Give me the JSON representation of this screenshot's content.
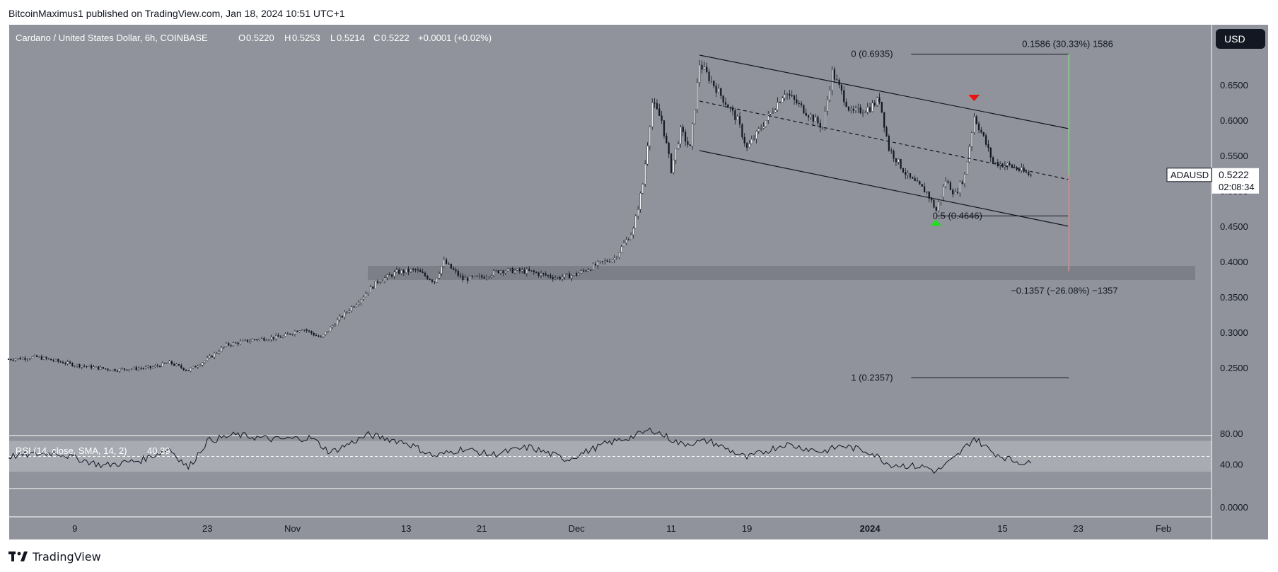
{
  "attribution": "BitcoinMaximus1 published on TradingView.com, Jan 18, 2024 10:51 UTC+1",
  "header": {
    "symbol": "Cardano / United States Dollar, 6h, COINBASE",
    "o_label": "O",
    "o_value": "0.5220",
    "h_label": "H",
    "h_value": "0.5253",
    "l_label": "L",
    "l_value": "0.5214",
    "c_label": "C",
    "c_value": "0.5222",
    "change": "+0.0001 (+0.02%)"
  },
  "currency_button": "USD",
  "brand": "TradingView",
  "colors": {
    "background": "#90939b",
    "candle": "#131722",
    "rsi_band": "#a9abb2",
    "support_zone": "#7c7f87",
    "green_marker": "#22dd22",
    "red_marker": "#ee1111",
    "green_line": "#7ec77e",
    "red_line": "#c98b8b"
  },
  "chart_data": {
    "type": "candlestick",
    "price_axis": {
      "min": 0.18,
      "max": 0.71,
      "ticks": [
        "0.6500",
        "0.6000",
        "0.5500",
        "0.5000",
        "0.4500",
        "0.4000",
        "0.3500",
        "0.3000",
        "0.2500"
      ]
    },
    "time_axis": {
      "start": "2023-10-02",
      "end": "2024-02-06",
      "ticks": [
        {
          "date": "2023-10-09",
          "label": "9"
        },
        {
          "date": "2023-10-23",
          "label": "23"
        },
        {
          "date": "2023-11-01",
          "label": "Nov"
        },
        {
          "date": "2023-11-13",
          "label": "13"
        },
        {
          "date": "2023-11-21",
          "label": "21"
        },
        {
          "date": "2023-12-01",
          "label": "Dec"
        },
        {
          "date": "2023-12-11",
          "label": "11"
        },
        {
          "date": "2023-12-19",
          "label": "19"
        },
        {
          "date": "2024-01-01",
          "label": "2024"
        },
        {
          "date": "2024-01-15",
          "label": "15"
        },
        {
          "date": "2024-01-23",
          "label": "23"
        },
        {
          "date": "2024-02-01",
          "label": "Feb"
        }
      ]
    },
    "price_path": [
      [
        "2023-10-02",
        0.262
      ],
      [
        "2023-10-05",
        0.265
      ],
      [
        "2023-10-09",
        0.254
      ],
      [
        "2023-10-13",
        0.247
      ],
      [
        "2023-10-17",
        0.25
      ],
      [
        "2023-10-19",
        0.257
      ],
      [
        "2023-10-21",
        0.246
      ],
      [
        "2023-10-23",
        0.262
      ],
      [
        "2023-10-25",
        0.282
      ],
      [
        "2023-10-28",
        0.29
      ],
      [
        "2023-10-31",
        0.294
      ],
      [
        "2023-11-02",
        0.306
      ],
      [
        "2023-11-04",
        0.292
      ],
      [
        "2023-11-06",
        0.32
      ],
      [
        "2023-11-08",
        0.345
      ],
      [
        "2023-11-10",
        0.372
      ],
      [
        "2023-11-12",
        0.385
      ],
      [
        "2023-11-14",
        0.388
      ],
      [
        "2023-11-16",
        0.372
      ],
      [
        "2023-11-17",
        0.4
      ],
      [
        "2023-11-19",
        0.375
      ],
      [
        "2023-11-21",
        0.378
      ],
      [
        "2023-11-23",
        0.388
      ],
      [
        "2023-11-26",
        0.386
      ],
      [
        "2023-11-29",
        0.377
      ],
      [
        "2023-12-01",
        0.382
      ],
      [
        "2023-12-03",
        0.395
      ],
      [
        "2023-12-05",
        0.405
      ],
      [
        "2023-12-07",
        0.445
      ],
      [
        "2023-12-08",
        0.51
      ],
      [
        "2023-12-09",
        0.625
      ],
      [
        "2023-12-10",
        0.6
      ],
      [
        "2023-12-11",
        0.53
      ],
      [
        "2023-12-12",
        0.585
      ],
      [
        "2023-12-13",
        0.56
      ],
      [
        "2023-12-14",
        0.68
      ],
      [
        "2023-12-16",
        0.64
      ],
      [
        "2023-12-18",
        0.6
      ],
      [
        "2023-12-19",
        0.56
      ],
      [
        "2023-12-21",
        0.6
      ],
      [
        "2023-12-23",
        0.64
      ],
      [
        "2023-12-25",
        0.615
      ],
      [
        "2023-12-27",
        0.59
      ],
      [
        "2023-12-28",
        0.668
      ],
      [
        "2023-12-30",
        0.61
      ],
      [
        "2024-01-01",
        0.618
      ],
      [
        "2024-01-02",
        0.63
      ],
      [
        "2024-01-03",
        0.56
      ],
      [
        "2024-01-05",
        0.52
      ],
      [
        "2024-01-07",
        0.498
      ],
      [
        "2024-01-08",
        0.472
      ],
      [
        "2024-01-09",
        0.515
      ],
      [
        "2024-01-10",
        0.495
      ],
      [
        "2024-01-11",
        0.522
      ],
      [
        "2024-01-12",
        0.606
      ],
      [
        "2024-01-13",
        0.575
      ],
      [
        "2024-01-14",
        0.54
      ],
      [
        "2024-01-16",
        0.535
      ],
      [
        "2024-01-17",
        0.528
      ],
      [
        "2024-01-18",
        0.522
      ]
    ],
    "channel": {
      "upper": [
        [
          "2023-12-14",
          0.692
        ],
        [
          "2024-01-22",
          0.588
        ]
      ],
      "middle": [
        [
          "2023-12-14",
          0.627
        ],
        [
          "2024-01-22",
          0.516
        ]
      ],
      "lower": [
        [
          "2023-12-14",
          0.557
        ],
        [
          "2024-01-22",
          0.45
        ]
      ]
    },
    "fib_levels": [
      {
        "label": "0 (0.6935)",
        "value": 0.6935
      },
      {
        "label": "0.5 (0.4646)",
        "value": 0.4646
      },
      {
        "label": "1 (0.2357)",
        "value": 0.2357
      }
    ],
    "support_zone": [
      0.374,
      0.394
    ],
    "measure_up": {
      "label": "0.1586 (30.33%) 1586",
      "from": 0.5222,
      "to": 0.6935,
      "date": "2024-01-22"
    },
    "measure_down": {
      "label": "−0.1357 (−26.08%) −1357",
      "from": 0.5222,
      "to": 0.3865,
      "date": "2024-01-22"
    },
    "markers": [
      {
        "type": "bullish",
        "date": "2024-01-08",
        "price": 0.4646
      },
      {
        "type": "bearish",
        "date": "2024-01-12",
        "price": 0.636
      }
    ],
    "last_price": {
      "symbol": "ADAUSD",
      "value": "0.5222",
      "countdown": "02:08:34"
    },
    "rsi": {
      "label": "RSI (14, close, SMA, 14, 2)",
      "value": "40.39",
      "ticks": [
        "80.00",
        "40.00",
        "0.0000"
      ],
      "band": [
        30,
        70
      ],
      "path": [
        [
          "2023-10-02",
          50
        ],
        [
          "2023-10-07",
          55
        ],
        [
          "2023-10-12",
          38
        ],
        [
          "2023-10-16",
          45
        ],
        [
          "2023-10-19",
          60
        ],
        [
          "2023-10-21",
          35
        ],
        [
          "2023-10-23",
          70
        ],
        [
          "2023-10-26",
          78
        ],
        [
          "2023-10-30",
          72
        ],
        [
          "2023-11-03",
          74
        ],
        [
          "2023-11-05",
          55
        ],
        [
          "2023-11-09",
          78
        ],
        [
          "2023-11-13",
          68
        ],
        [
          "2023-11-16",
          50
        ],
        [
          "2023-11-19",
          60
        ],
        [
          "2023-11-22",
          52
        ],
        [
          "2023-11-26",
          62
        ],
        [
          "2023-11-30",
          46
        ],
        [
          "2023-12-04",
          66
        ],
        [
          "2023-12-07",
          76
        ],
        [
          "2023-12-09",
          85
        ],
        [
          "2023-12-12",
          66
        ],
        [
          "2023-12-15",
          70
        ],
        [
          "2023-12-19",
          48
        ],
        [
          "2023-12-23",
          66
        ],
        [
          "2023-12-27",
          56
        ],
        [
          "2023-12-29",
          64
        ],
        [
          "2024-01-01",
          56
        ],
        [
          "2024-01-03",
          40
        ],
        [
          "2024-01-07",
          36
        ],
        [
          "2024-01-08",
          30
        ],
        [
          "2024-01-10",
          48
        ],
        [
          "2024-01-12",
          74
        ],
        [
          "2024-01-14",
          55
        ],
        [
          "2024-01-16",
          45
        ],
        [
          "2024-01-18",
          40
        ]
      ]
    }
  }
}
